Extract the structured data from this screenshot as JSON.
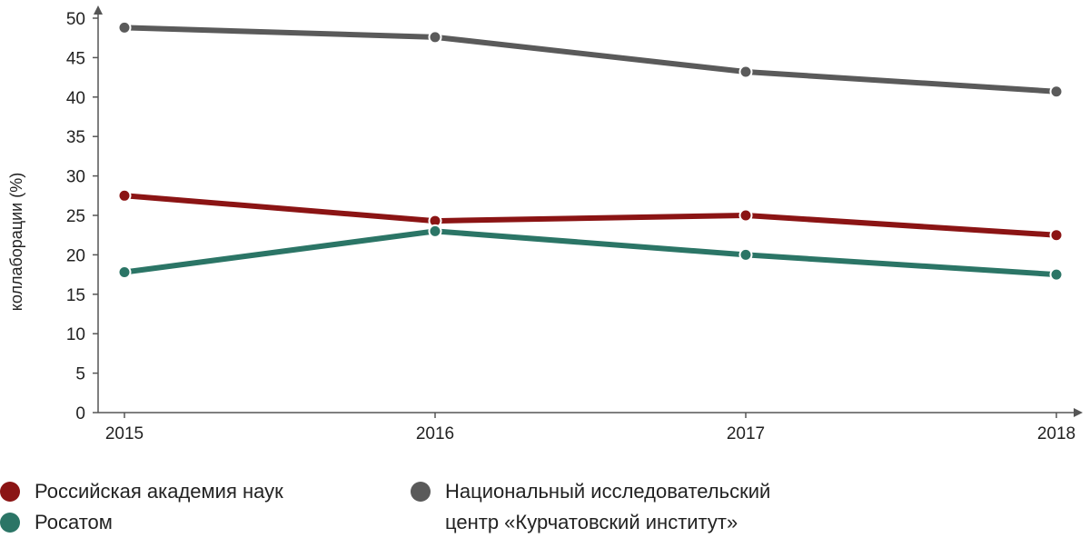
{
  "chart_data": {
    "type": "line",
    "x": [
      "2015",
      "2016",
      "2017",
      "2018"
    ],
    "ylabel": "коллаборации (%)",
    "xlabel": "",
    "ylim": [
      0,
      50
    ],
    "yticks": [
      0,
      5,
      10,
      15,
      20,
      25,
      30,
      35,
      40,
      45,
      50
    ],
    "grid": false,
    "series": [
      {
        "name": "Национальный исследовательский центр «Курчатовский институт»",
        "color": "#5a5a5a",
        "values": [
          48.8,
          47.6,
          43.2,
          40.7
        ]
      },
      {
        "name": "Российская академия наук",
        "color": "#8b1414",
        "values": [
          27.5,
          24.3,
          25.0,
          22.5
        ]
      },
      {
        "name": "Росатом",
        "color": "#2b7566",
        "values": [
          17.8,
          23.0,
          20.0,
          17.5
        ]
      }
    ]
  },
  "legend": {
    "ran": "Российская академия наук",
    "rosatom": "Росатом",
    "kurchatov_line1": "Национальный исследовательский",
    "kurchatov_line2": "центр «Курчатовский институт»"
  }
}
